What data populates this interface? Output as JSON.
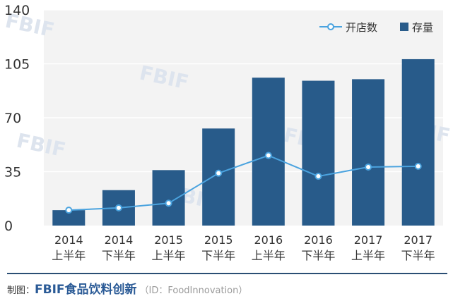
{
  "chart_data": {
    "type": "bar",
    "categories": [
      [
        "2014",
        "上半年"
      ],
      [
        "2014",
        "下半年"
      ],
      [
        "2015",
        "上半年"
      ],
      [
        "2015",
        "下半年"
      ],
      [
        "2016",
        "上半年"
      ],
      [
        "2016",
        "下半年"
      ],
      [
        "2017",
        "上半年"
      ],
      [
        "2017",
        "下半年"
      ]
    ],
    "series": [
      {
        "name": "存量",
        "kind": "bar",
        "color": "#285b8a",
        "values": [
          10,
          23,
          36,
          63,
          96,
          94,
          95,
          108
        ]
      },
      {
        "name": "开店数",
        "kind": "line",
        "color": "#4aa3df",
        "values": [
          10,
          11.5,
          14.5,
          34,
          45.5,
          32,
          38,
          38.5
        ]
      }
    ],
    "ylim": [
      0,
      140
    ],
    "yticks": [
      0,
      35,
      70,
      105,
      140
    ],
    "grid": true,
    "plot_background": "#f3f3f3",
    "legend_position": "top-right"
  },
  "footer": {
    "credit_label": "制图：",
    "brand": "FBIF食品饮料创新",
    "brand_id": "（ID：FoodInnovation）"
  },
  "watermark": {
    "text": "FBIF"
  }
}
